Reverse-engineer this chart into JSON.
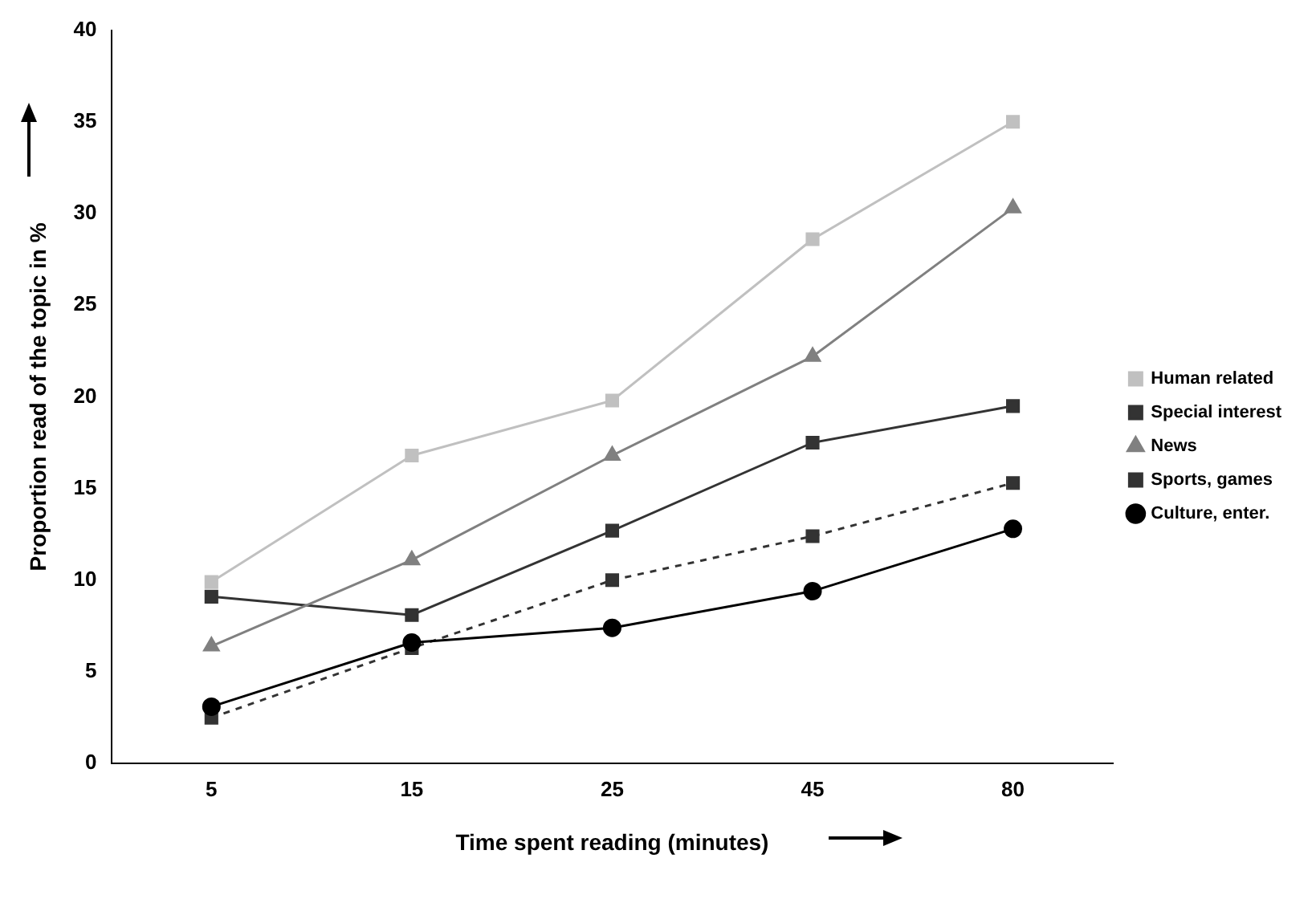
{
  "chart_data": {
    "type": "line",
    "xlabel": "Time spent reading (minutes)",
    "ylabel": "Proportion read of the topic in %",
    "categories": [
      "5",
      "15",
      "25",
      "45",
      "80"
    ],
    "ylim": [
      0,
      40
    ],
    "yticks": [
      0,
      5,
      10,
      15,
      20,
      25,
      30,
      35,
      40
    ],
    "grid": false,
    "legend": "right",
    "series": [
      {
        "name": "Human related",
        "color": "#c0c0c0",
        "marker": "square",
        "line_style": "solid",
        "values": [
          9.9,
          16.8,
          19.8,
          28.6,
          35.0
        ]
      },
      {
        "name": "Special interest",
        "color": "#333333",
        "marker": "square",
        "line_style": "solid",
        "values": [
          9.1,
          8.1,
          12.7,
          17.5,
          19.5
        ]
      },
      {
        "name": "News",
        "color": "#808080",
        "marker": "triangle",
        "line_style": "solid",
        "values": [
          6.4,
          11.1,
          16.8,
          22.2,
          30.3
        ]
      },
      {
        "name": "Sports, games",
        "color": "#333333",
        "marker": "square",
        "line_style": "dashed",
        "values": [
          2.5,
          6.3,
          10.0,
          12.4,
          15.3
        ]
      },
      {
        "name": "Culture, enter.",
        "color": "#000000",
        "marker": "circle",
        "line_style": "solid",
        "values": [
          3.1,
          6.6,
          7.4,
          9.4,
          12.8
        ]
      }
    ]
  }
}
